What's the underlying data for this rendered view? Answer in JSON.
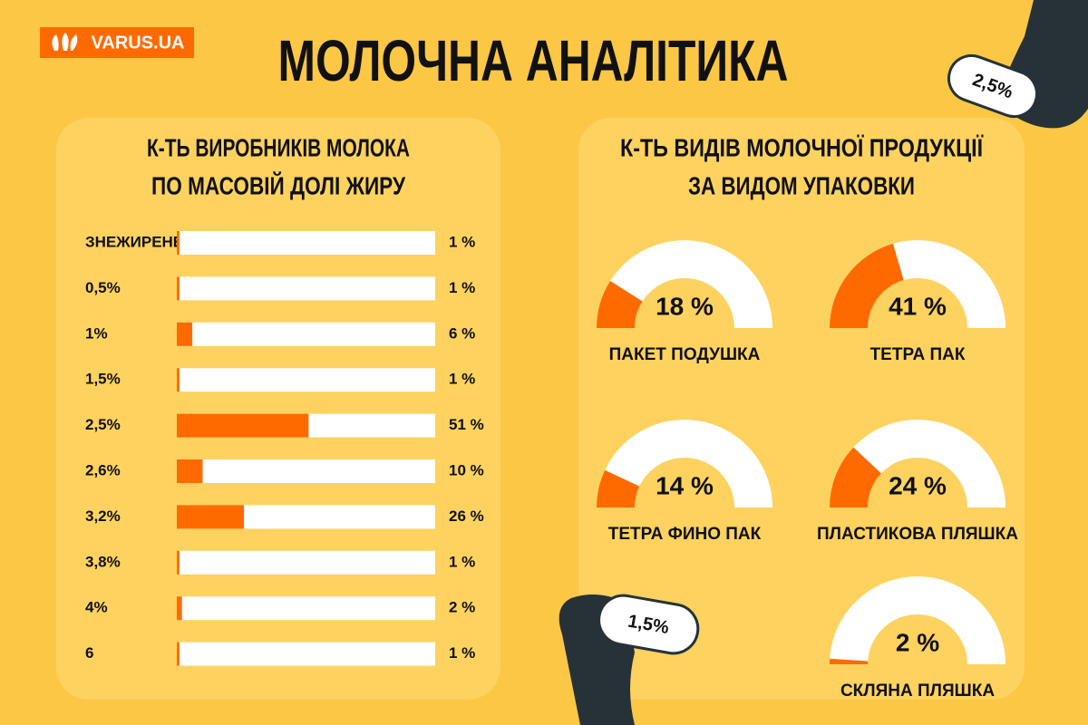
{
  "header": {
    "logo": "VARUS.UA",
    "title": "МОЛОЧНА АНАЛІТИКА"
  },
  "decorations": [
    "2,5%",
    "1,5%"
  ],
  "chart_data": [
    {
      "type": "hbar",
      "title": [
        "К-ТЬ ВИРОБНИКІВ МОЛОКА",
        "ПО МАСОВІЙ ДОЛІ ЖИРУ"
      ],
      "categories": [
        "ЗНЕЖИРЕНЕ",
        "0,5%",
        "1%",
        "1,5%",
        "2,5%",
        "2,6%",
        "3,2%",
        "3,8%",
        "4%",
        "6"
      ],
      "values": [
        1,
        1,
        6,
        1,
        51,
        10,
        26,
        1,
        2,
        1
      ],
      "value_labels": [
        "1 %",
        "1 %",
        "6 %",
        "1 %",
        "51 %",
        "10 %",
        "26 %",
        "1 %",
        "2 %",
        "1 %"
      ],
      "xlim": [
        0,
        100
      ],
      "color": "#ff6a00",
      "track_color": "#ffffff"
    },
    {
      "type": "gauge",
      "title": [
        "К-ТЬ ВИДІВ МОЛОЧНОЇ ПРОДУКЦІЇ",
        "ЗА ВИДОМ УПАКОВКИ"
      ],
      "categories": [
        "ПАКЕТ ПОДУШКА",
        "ТЕТРА ПАК",
        "ТЕТРА ФИНО ПАК",
        "ПЛАСТИКОВА ПЛЯШКА",
        "СКЛЯНА ПЛЯШКА"
      ],
      "values": [
        18,
        41,
        14,
        24,
        2
      ],
      "value_labels": [
        "18 %",
        "41 %",
        "14 %",
        "24 %",
        "2 %"
      ],
      "ylim": [
        0,
        100
      ],
      "color": "#ff6a00",
      "track_color": "#ffffff"
    }
  ]
}
